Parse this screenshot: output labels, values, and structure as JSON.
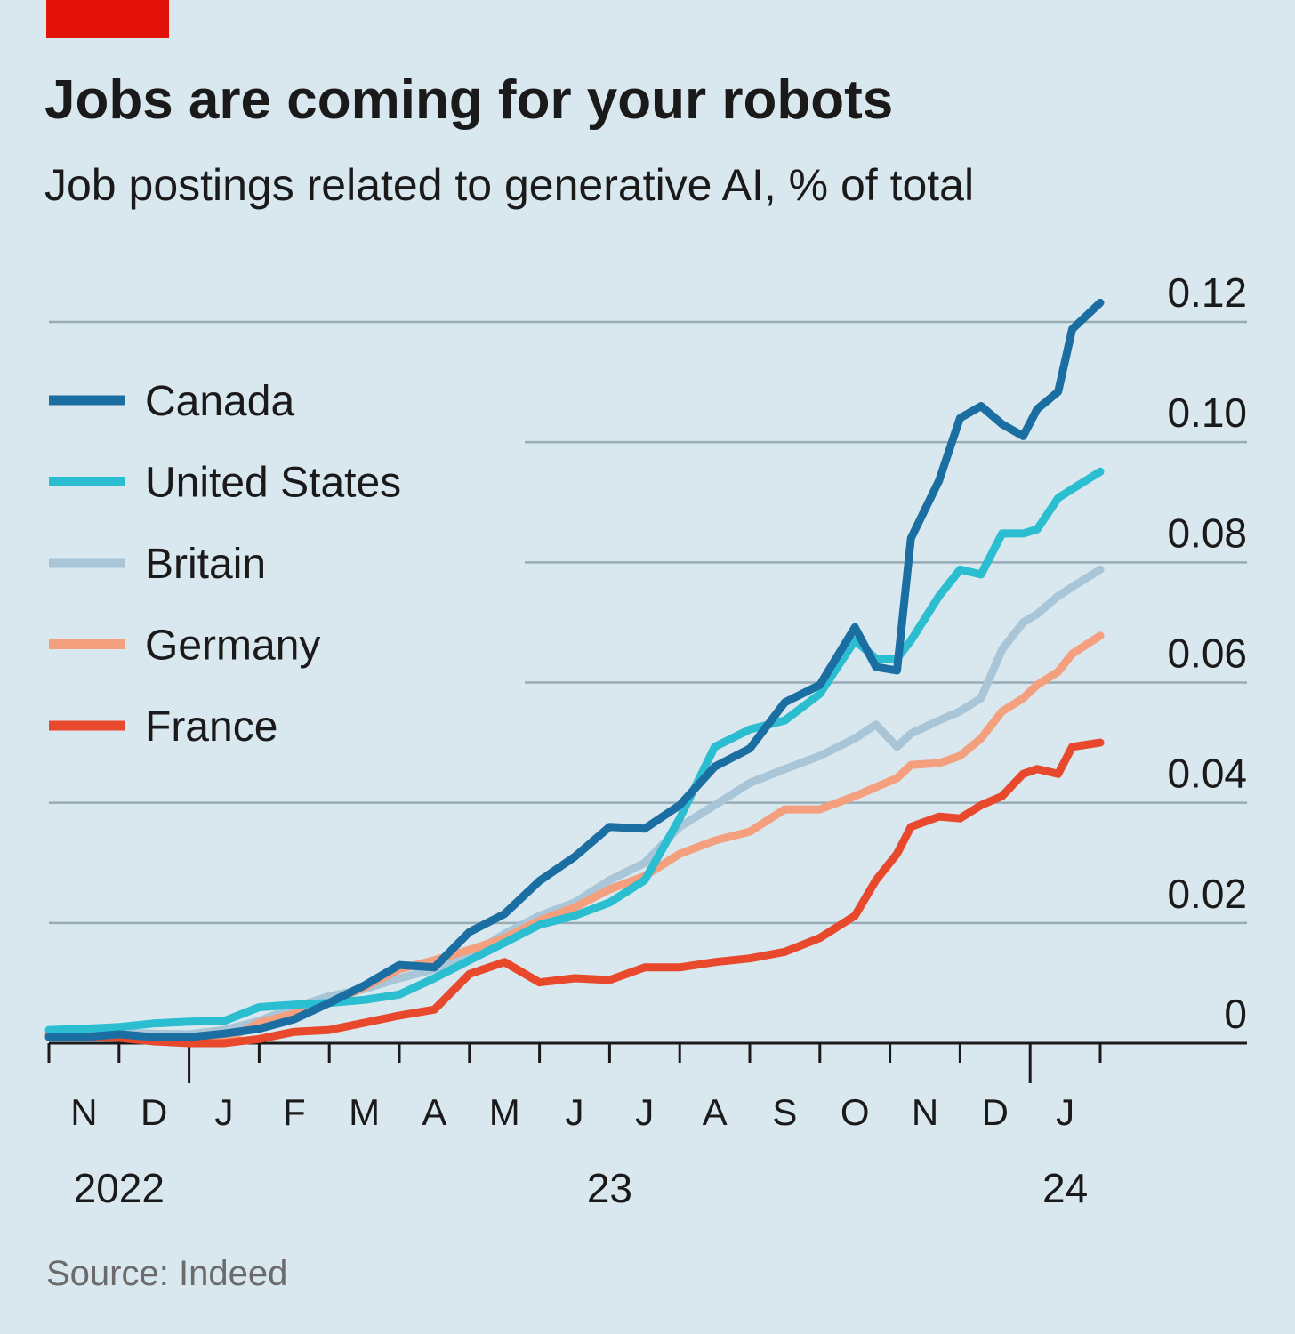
{
  "chart_data": {
    "type": "line",
    "title": "Jobs are coming for your robots",
    "subtitle": "Job postings related to generative AI, % of total",
    "source": "Source: Indeed",
    "x": [
      0,
      0.5,
      1,
      1.5,
      2,
      2.5,
      3,
      3.5,
      4,
      4.5,
      5,
      5.5,
      6,
      6.5,
      7,
      7.5,
      8,
      8.5,
      9,
      9.5,
      10,
      10.5,
      11,
      11.5,
      11.8,
      12.1,
      12.3,
      12.7,
      13,
      13.3,
      13.6,
      13.9,
      14.1,
      14.4,
      14.6,
      15
    ],
    "xlim": [
      0,
      15
    ],
    "xticks": [
      {
        "value": 0.5,
        "label": "N"
      },
      {
        "value": 1.5,
        "label": "D"
      },
      {
        "value": 2.5,
        "label": "J"
      },
      {
        "value": 3.5,
        "label": "F"
      },
      {
        "value": 4.5,
        "label": "M"
      },
      {
        "value": 5.5,
        "label": "A"
      },
      {
        "value": 6.5,
        "label": "M"
      },
      {
        "value": 7.5,
        "label": "J"
      },
      {
        "value": 8.5,
        "label": "J"
      },
      {
        "value": 9.5,
        "label": "A"
      },
      {
        "value": 10.5,
        "label": "S"
      },
      {
        "value": 11.5,
        "label": "O"
      },
      {
        "value": 12.5,
        "label": "N"
      },
      {
        "value": 13.5,
        "label": "D"
      },
      {
        "value": 14.5,
        "label": "J"
      }
    ],
    "year_labels": [
      {
        "value": 1,
        "label": "2022"
      },
      {
        "value": 8,
        "label": "23"
      },
      {
        "value": 14.5,
        "label": "24"
      }
    ],
    "ylim": [
      0,
      0.12
    ],
    "yticks": [
      0,
      0.02,
      0.04,
      0.06,
      0.08,
      {
        "value": 0.1,
        "label": "0.10"
      },
      0.12
    ],
    "grid": true,
    "legend": "top-left",
    "series": [
      {
        "name": "Britain",
        "color": "#a8c6d8",
        "values": [
          0.0016,
          0.0016,
          0.0018,
          0.0016,
          0.0015,
          0.0022,
          0.0037,
          0.006,
          0.0078,
          0.009,
          0.0108,
          0.0123,
          0.0145,
          0.0182,
          0.0212,
          0.0234,
          0.0271,
          0.03,
          0.036,
          0.0396,
          0.0433,
          0.0456,
          0.0478,
          0.0507,
          0.053,
          0.0493,
          0.0515,
          0.0537,
          0.0552,
          0.0574,
          0.0655,
          0.07,
          0.0714,
          0.0744,
          0.0759,
          0.0788
        ]
      },
      {
        "name": "Germany",
        "color": "#f4a07e",
        "values": [
          0.0015,
          0.0013,
          0.001,
          0.0004,
          0.0001,
          0.0004,
          0.0034,
          0.0049,
          0.0067,
          0.0093,
          0.0123,
          0.0138,
          0.0155,
          0.0175,
          0.0204,
          0.0226,
          0.0256,
          0.0278,
          0.0315,
          0.0337,
          0.0352,
          0.0389,
          0.0389,
          0.0411,
          0.0426,
          0.0441,
          0.0463,
          0.0466,
          0.0478,
          0.0507,
          0.0552,
          0.0574,
          0.0596,
          0.0618,
          0.0648,
          0.0678
        ]
      },
      {
        "name": "France",
        "color": "#e8492d",
        "values": [
          0.0012,
          0.001,
          0.0009,
          0.0003,
          0,
          0,
          0.0007,
          0.0019,
          0.0022,
          0.0034,
          0.0046,
          0.0056,
          0.0115,
          0.0135,
          0.0101,
          0.0108,
          0.0105,
          0.0126,
          0.0126,
          0.0135,
          0.0141,
          0.0152,
          0.0175,
          0.0212,
          0.0271,
          0.0315,
          0.036,
          0.0377,
          0.0374,
          0.0396,
          0.0411,
          0.0448,
          0.0456,
          0.0448,
          0.0493,
          0.05
        ]
      },
      {
        "name": "United States",
        "color": "#2bbdd0",
        "values": [
          0.0022,
          0.0024,
          0.0027,
          0.0033,
          0.0036,
          0.0037,
          0.006,
          0.0064,
          0.0067,
          0.0072,
          0.0081,
          0.0108,
          0.0138,
          0.0167,
          0.0197,
          0.0212,
          0.0234,
          0.0271,
          0.0374,
          0.0493,
          0.0522,
          0.0537,
          0.0581,
          0.067,
          0.064,
          0.064,
          0.067,
          0.0744,
          0.0788,
          0.078,
          0.0848,
          0.0848,
          0.0855,
          0.0907,
          0.0922,
          0.0951
        ]
      },
      {
        "name": "Canada",
        "color": "#1b6ea2",
        "values": [
          0.001,
          0.001,
          0.0015,
          0.001,
          0.001,
          0.0016,
          0.0024,
          0.004,
          0.0067,
          0.0096,
          0.013,
          0.0126,
          0.0185,
          0.0215,
          0.027,
          0.031,
          0.036,
          0.0357,
          0.0396,
          0.046,
          0.049,
          0.0567,
          0.0596,
          0.0692,
          0.0626,
          0.062,
          0.084,
          0.0936,
          0.104,
          0.106,
          0.103,
          0.101,
          0.1055,
          0.1084,
          0.1188,
          0.1232
        ]
      }
    ],
    "legend_order": [
      4,
      3,
      0,
      1,
      2
    ]
  }
}
